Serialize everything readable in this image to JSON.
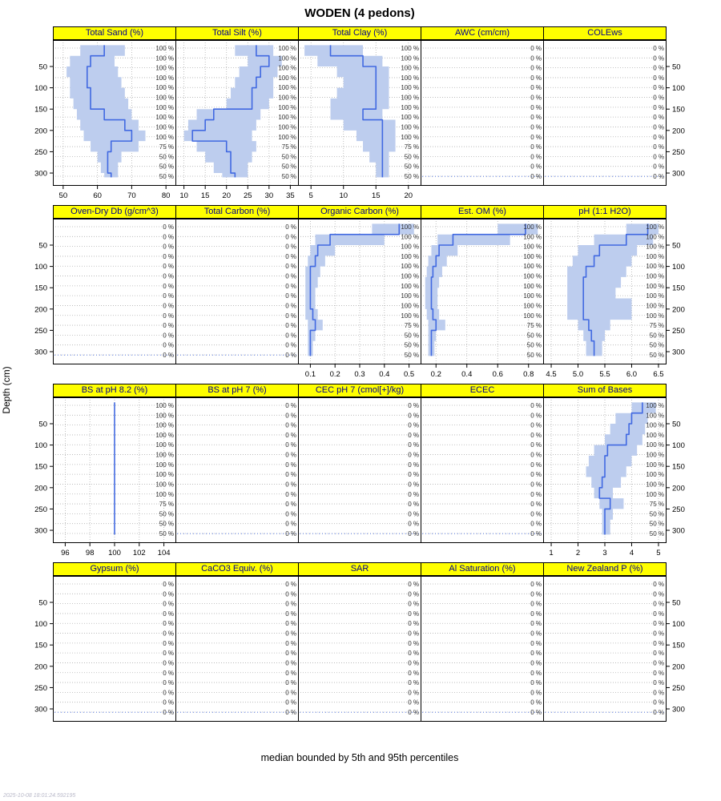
{
  "title": "WODEN (4 pedons)",
  "caption": "median bounded by 5th and 95th percentiles",
  "timestamp": "2025-10-08 18:01:24.592195",
  "ylabel": "Depth (cm)",
  "depth_ticks": [
    50,
    100,
    150,
    200,
    250,
    300
  ],
  "depth_domain": [
    -12,
    330
  ],
  "colors": {
    "strip_bg": "#FFFF00",
    "strip_text": "#00008B",
    "median": "#4169E1",
    "band": "#BDCDEE",
    "grid": "#B0B0B0",
    "border": "#000000"
  },
  "pct_labels": {
    "data": [
      "100 %",
      "100 %",
      "100 %",
      "100 %",
      "100 %",
      "100 %",
      "100 %",
      "100 %",
      "100 %",
      "100 %",
      "75 %",
      "50 %",
      "50 %",
      "50 %"
    ],
    "zero": [
      "0 %",
      "0 %",
      "0 %",
      "0 %",
      "0 %",
      "0 %",
      "0 %",
      "0 %",
      "0 %",
      "0 %",
      "0 %",
      "0 %",
      "0 %",
      "0 %"
    ]
  },
  "chart_data": {
    "type": "area",
    "description": "Depth-wise median with 5th-95th percentile envelope of soil properties for WODEN series (4 pedons); 4x5 lattice of depth-profile panels, depth 0-310 cm",
    "slab_boundaries": [
      0,
      25,
      50,
      75,
      100,
      125,
      150,
      175,
      200,
      225,
      250,
      275,
      300,
      310
    ],
    "rows": [
      [
        {
          "title": "Total Sand (%)",
          "pct": "data",
          "empty": false,
          "x_ticks": [
            50,
            60,
            70,
            80
          ],
          "x_tick_labels": [
            "50",
            "60",
            "70",
            "80"
          ],
          "x_domain": [
            47,
            83
          ],
          "median": [
            62,
            58,
            57,
            57,
            58,
            58,
            62,
            68,
            70,
            64,
            63,
            63,
            64
          ],
          "p5": [
            55,
            52,
            51,
            52,
            52,
            53,
            54,
            55,
            56,
            58,
            60,
            61,
            62
          ],
          "p95": [
            68,
            65,
            66,
            67,
            68,
            69,
            70,
            72,
            74,
            72,
            67,
            66,
            66
          ]
        },
        {
          "title": "Total Silt (%)",
          "pct": "data",
          "empty": false,
          "x_ticks": [
            10,
            15,
            20,
            25,
            30,
            35
          ],
          "x_tick_labels": [
            "10",
            "15",
            "20",
            "25",
            "30",
            "35"
          ],
          "x_domain": [
            8,
            37
          ],
          "median": [
            27,
            30,
            28,
            27,
            26,
            26,
            17,
            15,
            12,
            20,
            21,
            21,
            22
          ],
          "p5": [
            22,
            25,
            23,
            22,
            21,
            20,
            13,
            11,
            10,
            13,
            15,
            17,
            19
          ],
          "p95": [
            31,
            33,
            32,
            31,
            31,
            30,
            28,
            27,
            26,
            27,
            26,
            25,
            25
          ]
        },
        {
          "title": "Total Clay (%)",
          "pct": "data",
          "empty": false,
          "x_ticks": [
            5,
            10,
            15,
            20
          ],
          "x_tick_labels": [
            "5",
            "10",
            "15",
            "20"
          ],
          "x_domain": [
            3,
            22
          ],
          "median": [
            8,
            13,
            15,
            15,
            15,
            15,
            13,
            16,
            16,
            16,
            16,
            16,
            16
          ],
          "p5": [
            4,
            6,
            9,
            10,
            9,
            8,
            8,
            10,
            12,
            13,
            14,
            15,
            15
          ],
          "p95": [
            13,
            16,
            17,
            17,
            17,
            17,
            16,
            18,
            18,
            18,
            17,
            17,
            17
          ]
        },
        {
          "title": "AWC (cm/cm)",
          "pct": "zero",
          "empty": true
        },
        {
          "title": "COLEws",
          "pct": "zero",
          "empty": true
        }
      ],
      [
        {
          "title": "Oven-Dry Db (g/cm^3)",
          "pct": "zero",
          "empty": true
        },
        {
          "title": "Total Carbon (%)",
          "pct": "zero",
          "empty": true
        },
        {
          "title": "Organic Carbon (%)",
          "pct": "data",
          "empty": false,
          "x_ticks": [
            0.1,
            0.2,
            0.3,
            0.4,
            0.5
          ],
          "x_tick_labels": [
            "0.1",
            "0.2",
            "0.3",
            "0.4",
            "0.5"
          ],
          "x_domain": [
            0.05,
            0.55
          ],
          "median": [
            0.46,
            0.18,
            0.13,
            0.12,
            0.1,
            0.1,
            0.1,
            0.1,
            0.11,
            0.12,
            0.1,
            0.1,
            0.1
          ],
          "p5": [
            0.35,
            0.12,
            0.1,
            0.09,
            0.08,
            0.08,
            0.08,
            0.08,
            0.08,
            0.09,
            0.09,
            0.09,
            0.09
          ],
          "p95": [
            0.52,
            0.4,
            0.2,
            0.16,
            0.14,
            0.13,
            0.12,
            0.12,
            0.13,
            0.15,
            0.12,
            0.11,
            0.11
          ]
        },
        {
          "title": "Est. OM (%)",
          "pct": "data",
          "empty": false,
          "x_ticks": [
            0.2,
            0.4,
            0.6,
            0.8
          ],
          "x_tick_labels": [
            "0.2",
            "0.4",
            "0.6",
            "0.8"
          ],
          "x_domain": [
            0.1,
            0.9
          ],
          "median": [
            0.78,
            0.31,
            0.22,
            0.2,
            0.18,
            0.17,
            0.17,
            0.17,
            0.18,
            0.2,
            0.17,
            0.17,
            0.17
          ],
          "p5": [
            0.6,
            0.21,
            0.17,
            0.15,
            0.14,
            0.13,
            0.13,
            0.13,
            0.14,
            0.15,
            0.15,
            0.15,
            0.15
          ],
          "p95": [
            0.86,
            0.68,
            0.34,
            0.27,
            0.24,
            0.22,
            0.21,
            0.21,
            0.22,
            0.26,
            0.2,
            0.19,
            0.19
          ]
        },
        {
          "title": "pH (1:1 H2O)",
          "pct": "data",
          "empty": false,
          "x_ticks": [
            4.5,
            5.0,
            5.5,
            6.0,
            6.5
          ],
          "x_tick_labels": [
            "4.5",
            "5.0",
            "5.5",
            "6.0",
            "6.5"
          ],
          "x_domain": [
            4.35,
            6.65
          ],
          "median": [
            6.3,
            5.9,
            5.4,
            5.3,
            5.15,
            5.1,
            5.1,
            5.1,
            5.1,
            5.2,
            5.25,
            5.3,
            5.3
          ],
          "p5": [
            5.9,
            5.3,
            5.0,
            4.9,
            4.8,
            4.8,
            4.8,
            4.8,
            4.8,
            5.0,
            5.1,
            5.15,
            5.15
          ],
          "p95": [
            6.5,
            6.4,
            6.1,
            6.0,
            5.9,
            5.8,
            5.7,
            6.0,
            6.0,
            5.6,
            5.5,
            5.45,
            5.45
          ]
        }
      ],
      [
        {
          "title": "BS at pH 8.2 (%)",
          "pct": "data",
          "empty": false,
          "x_ticks": [
            96,
            98,
            100,
            102,
            104
          ],
          "x_tick_labels": [
            "96",
            "98",
            "100",
            "102",
            "104"
          ],
          "x_domain": [
            95,
            105
          ],
          "median": [
            100,
            100,
            100,
            100,
            100,
            100,
            100,
            100,
            100,
            100,
            100,
            100,
            100
          ],
          "p5": [
            100,
            100,
            100,
            100,
            100,
            100,
            100,
            100,
            100,
            100,
            100,
            100,
            100
          ],
          "p95": [
            100,
            100,
            100,
            100,
            100,
            100,
            100,
            100,
            100,
            100,
            100,
            100,
            100
          ]
        },
        {
          "title": "BS at pH 7 (%)",
          "pct": "zero",
          "empty": true
        },
        {
          "title": "CEC pH 7 (cmol[+]/kg)",
          "pct": "zero",
          "empty": true
        },
        {
          "title": "ECEC",
          "pct": "zero",
          "empty": true
        },
        {
          "title": "Sum of Bases",
          "pct": "data",
          "empty": false,
          "x_ticks": [
            1,
            2,
            3,
            4,
            5
          ],
          "x_tick_labels": [
            "1",
            "2",
            "3",
            "4",
            "5"
          ],
          "x_domain": [
            0.7,
            5.3
          ],
          "median": [
            4.4,
            4.0,
            3.9,
            3.8,
            3.1,
            3.0,
            3.0,
            2.9,
            2.8,
            3.2,
            3.0,
            3.0,
            3.0
          ],
          "p5": [
            4.0,
            3.4,
            3.2,
            3.0,
            2.6,
            2.4,
            2.3,
            2.5,
            2.6,
            2.8,
            2.9,
            2.9,
            2.9
          ],
          "p95": [
            4.9,
            4.6,
            4.5,
            4.4,
            4.2,
            4.0,
            3.8,
            3.6,
            3.3,
            3.7,
            3.3,
            3.2,
            3.2
          ]
        }
      ],
      [
        {
          "title": "Gypsum (%)",
          "pct": "zero",
          "empty": true
        },
        {
          "title": "CaCO3 Equiv. (%)",
          "pct": "zero",
          "empty": true
        },
        {
          "title": "SAR",
          "pct": "zero",
          "empty": true
        },
        {
          "title": "Al Saturation (%)",
          "pct": "zero",
          "empty": true
        },
        {
          "title": "New Zealand P (%)",
          "pct": "zero",
          "empty": true
        }
      ]
    ]
  }
}
